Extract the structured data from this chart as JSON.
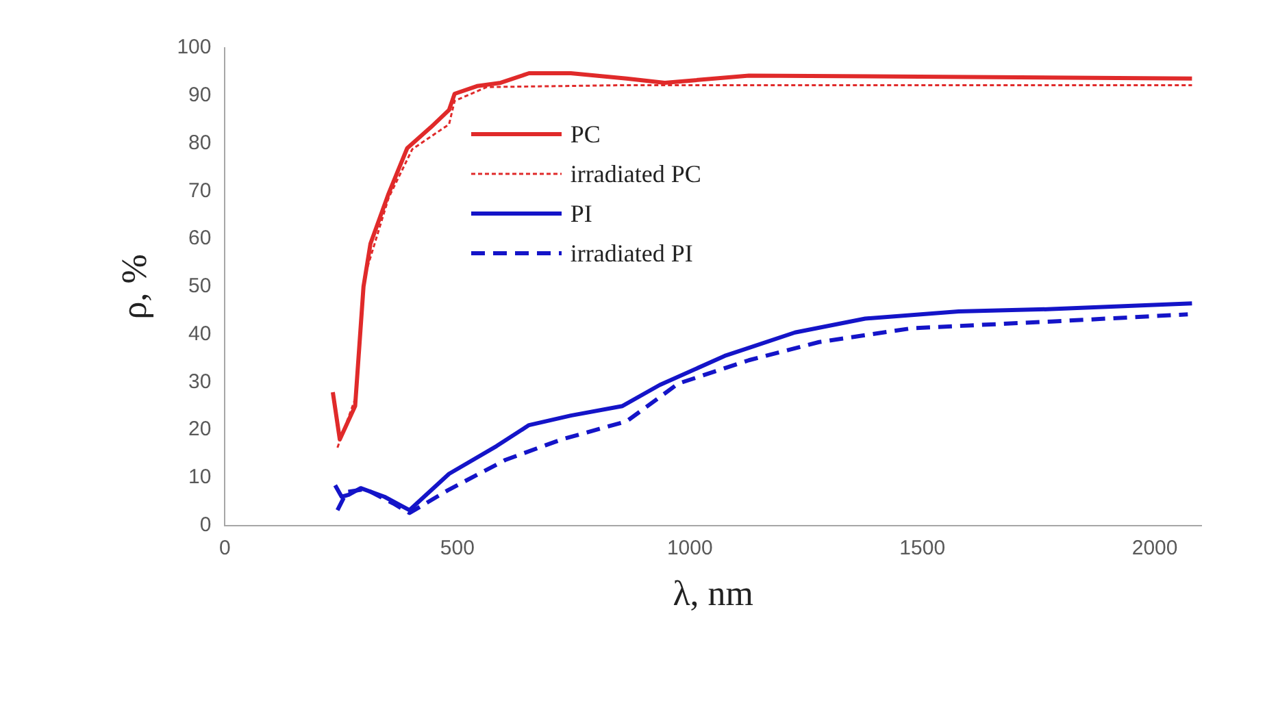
{
  "chart_data": {
    "type": "line",
    "xlabel": "λ, nm",
    "ylabel": "ρ, %",
    "xlim": [
      0,
      2100
    ],
    "xticks": [
      0,
      500,
      1000,
      1500,
      2000
    ],
    "ylim": [
      0,
      100
    ],
    "yticks": [
      0,
      10,
      20,
      30,
      40,
      50,
      60,
      70,
      80,
      90,
      100
    ],
    "grid": false,
    "legend": "center",
    "marker": "none",
    "series": [
      {
        "name": "PC",
        "color": "#e02a2a",
        "line_style": "solid",
        "x": [
          232,
          247,
          280,
          298,
          313,
          352,
          392,
          443,
          482,
          494,
          542,
          593,
          654,
          744,
          864,
          946,
          1127,
          2080
        ],
        "values": [
          27.9,
          18,
          25,
          50,
          59,
          69.5,
          79,
          83.4,
          87,
          90.4,
          92,
          92.7,
          94.7,
          94.7,
          93.6,
          92.7,
          94.2,
          93.6
        ]
      },
      {
        "name": "irradiated PC",
        "color": "#e02a2a",
        "line_style": "dotted",
        "x": [
          242,
          282,
          300,
          352,
          403,
          482,
          494,
          563,
          864,
          2080
        ],
        "values": [
          16.3,
          27,
          52,
          68.6,
          78.8,
          84,
          88.9,
          91.8,
          92.2,
          92.2
        ]
      },
      {
        "name": "PI",
        "color": "#1414c8",
        "line_style": "solid",
        "x": [
          237,
          251,
          266,
          292,
          343,
          397,
          482,
          584,
          654,
          744,
          855,
          935,
          1075,
          1226,
          1377,
          1578,
          1778,
          2080
        ],
        "values": [
          8.4,
          6,
          6.4,
          7.8,
          6,
          3.2,
          10.8,
          16.6,
          21,
          23,
          25,
          29.4,
          35.5,
          40.4,
          43.3,
          44.8,
          45.3,
          46.5
        ]
      },
      {
        "name": "irradiated PI",
        "color": "#1414c8",
        "line_style": "dashed",
        "x": [
          242,
          262,
          302,
          362,
          397,
          482,
          603,
          724,
          864,
          975,
          1127,
          1278,
          1478,
          1778,
          2071
        ],
        "values": [
          3.2,
          7,
          7.6,
          4.6,
          2.6,
          7.5,
          13.7,
          18,
          21.8,
          29.7,
          34.6,
          38.4,
          41.3,
          42.7,
          44.2
        ]
      }
    ]
  }
}
